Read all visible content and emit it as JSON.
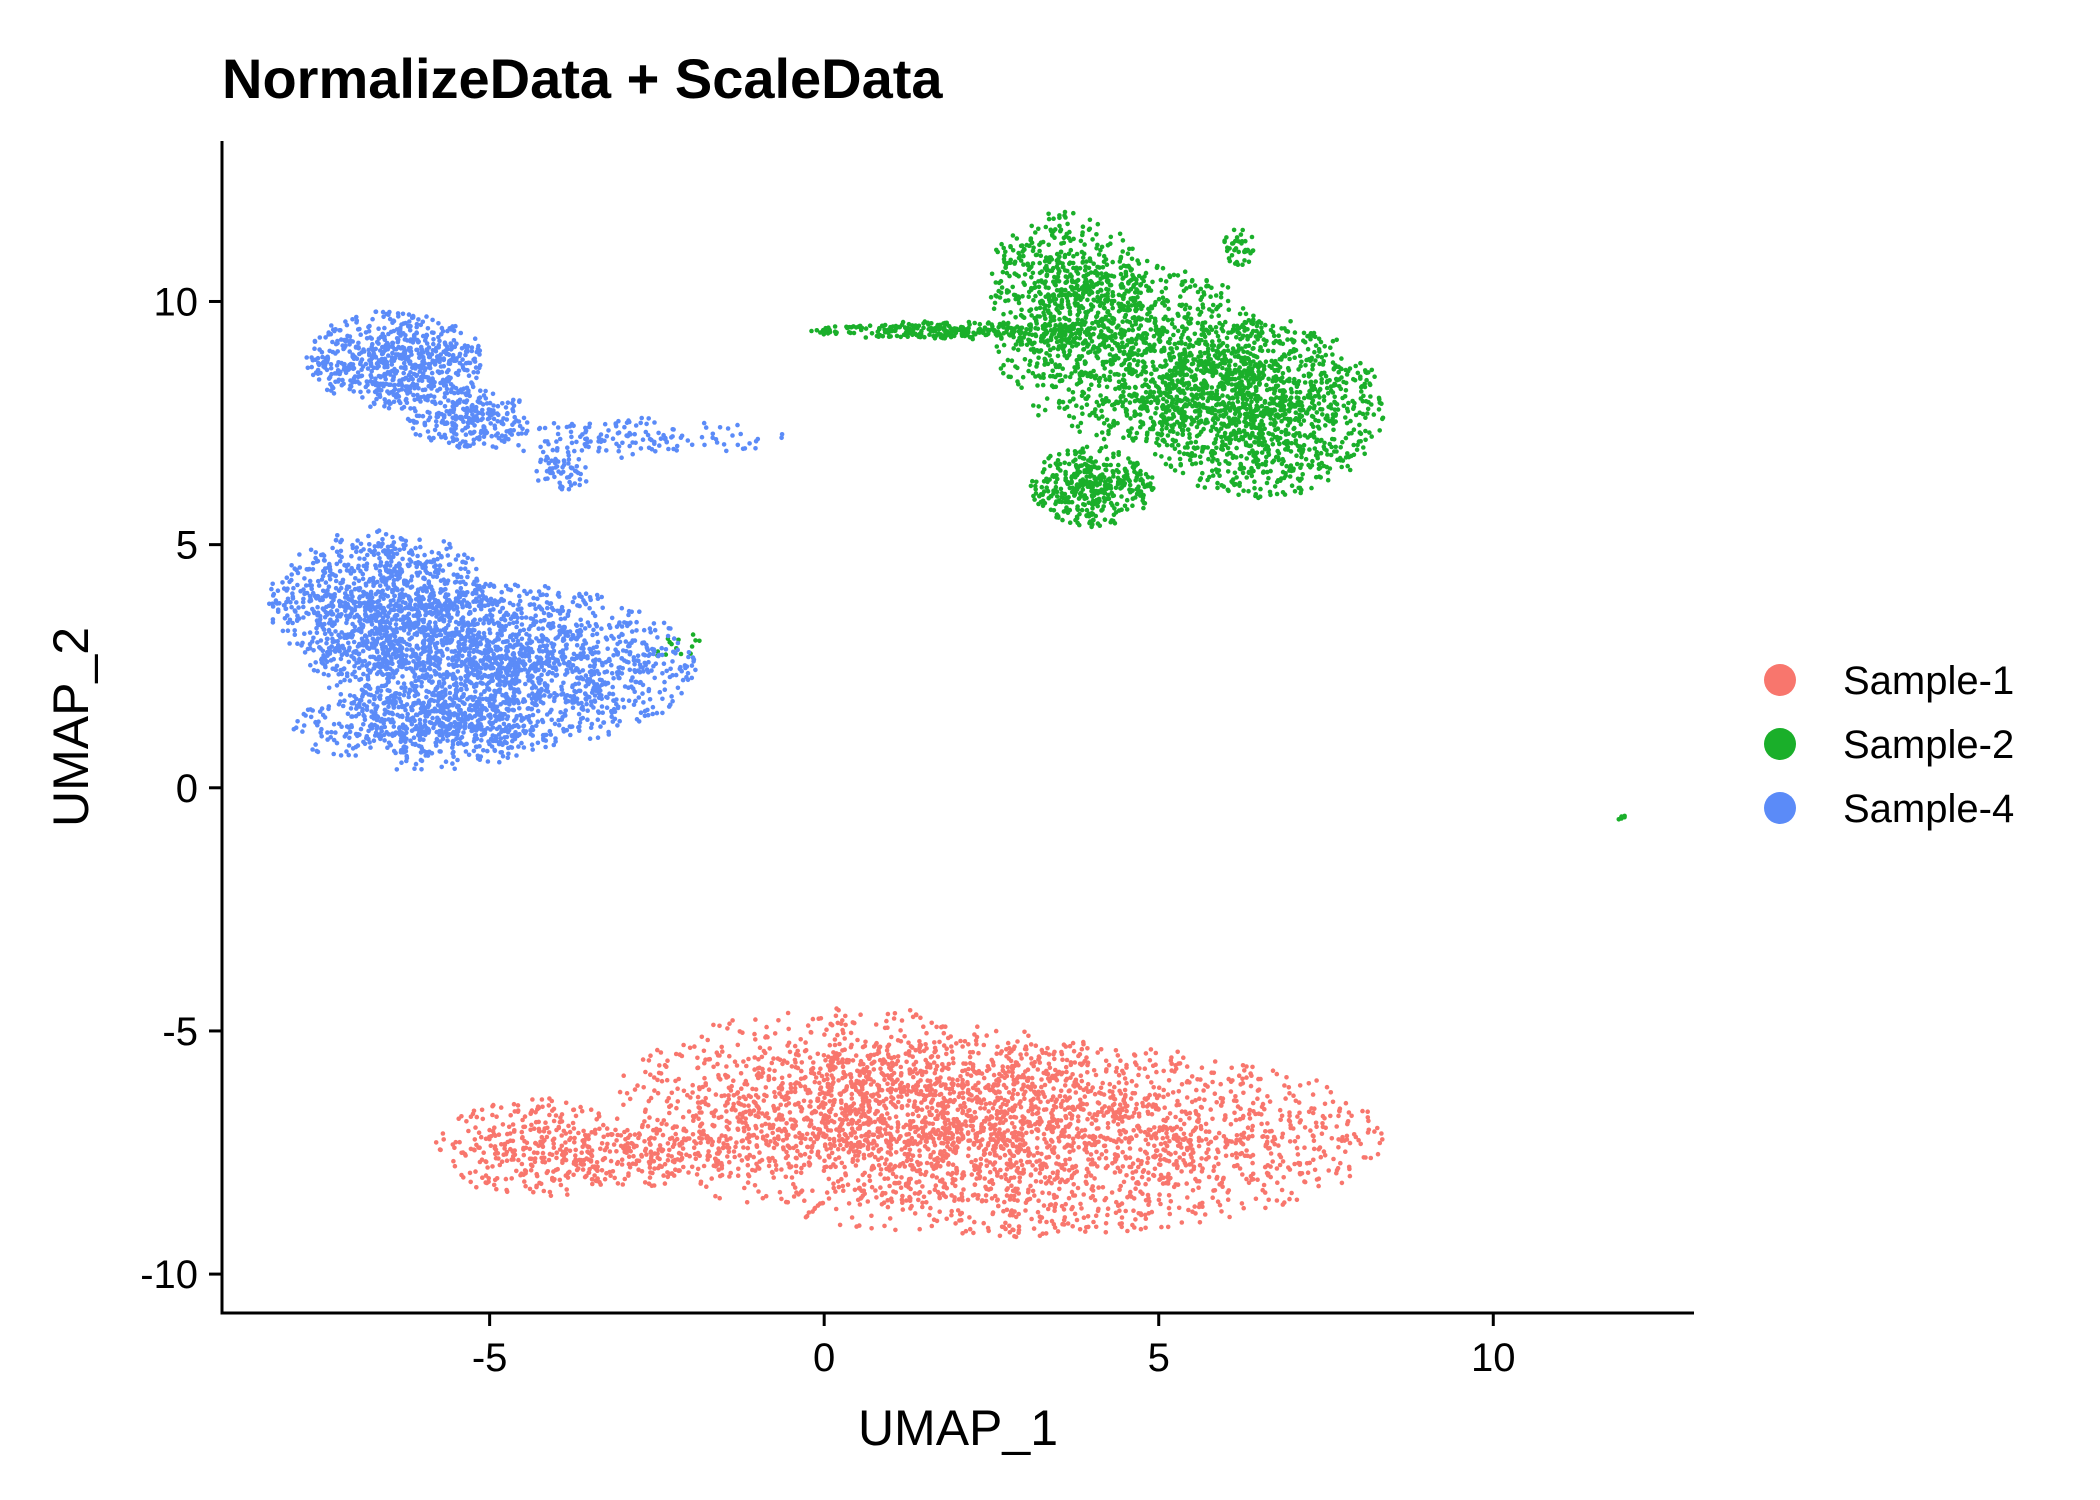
{
  "chart_data": {
    "type": "scatter",
    "title": "NormalizeData + ScaleData",
    "xlabel": "UMAP_1",
    "ylabel": "UMAP_2",
    "xlim": [
      -9,
      13
    ],
    "ylim": [
      -10.8,
      13.3
    ],
    "xticks": [
      -5,
      0,
      5,
      10
    ],
    "yticks": [
      -10,
      -5,
      0,
      5,
      10
    ],
    "xtick_labels": [
      "-5",
      "0",
      "5",
      "10"
    ],
    "ytick_labels": [
      "-10",
      "-5",
      "0",
      "5",
      "10"
    ],
    "grid": false,
    "legend_position": "right",
    "series": [
      {
        "name": "Sample-1",
        "color": "#F8766D",
        "clusters": [
          {
            "cx": 2.8,
            "cy": -7.2,
            "sx": 3.3,
            "sy": 1.2,
            "n": 2600
          },
          {
            "cx": 0.5,
            "cy": -6.2,
            "sx": 2.1,
            "sy": 1.0,
            "n": 900
          },
          {
            "cx": -4.3,
            "cy": -7.4,
            "sx": 0.9,
            "sy": 0.6,
            "n": 350
          },
          {
            "cx": -2.6,
            "cy": -7.6,
            "sx": 0.8,
            "sy": 0.35,
            "n": 160
          }
        ]
      },
      {
        "name": "Sample-2",
        "color": "#1AAF2A",
        "clusters": [
          {
            "cx": 6.5,
            "cy": 7.8,
            "sx": 1.1,
            "sy": 1.1,
            "n": 1400
          },
          {
            "cx": 4.6,
            "cy": 9.0,
            "sx": 1.2,
            "sy": 1.1,
            "n": 1100
          },
          {
            "cx": 3.6,
            "cy": 10.4,
            "sx": 0.7,
            "sy": 0.9,
            "n": 500
          },
          {
            "cx": 4.0,
            "cy": 6.2,
            "sx": 0.55,
            "sy": 0.5,
            "n": 420
          },
          {
            "cx": 1.8,
            "cy": 9.4,
            "sx": 1.2,
            "sy": 0.12,
            "n": 260
          },
          {
            "cx": 6.2,
            "cy": 11.1,
            "sx": 0.15,
            "sy": 0.25,
            "n": 40
          },
          {
            "cx": -2.2,
            "cy": 2.9,
            "sx": 0.3,
            "sy": 0.2,
            "n": 14
          },
          {
            "cx": 11.9,
            "cy": -0.6,
            "sx": 0.05,
            "sy": 0.05,
            "n": 6
          }
        ]
      },
      {
        "name": "Sample-4",
        "color": "#5B8BF8",
        "clusters": [
          {
            "cx": -4.8,
            "cy": 2.5,
            "sx": 1.7,
            "sy": 1.0,
            "n": 1900
          },
          {
            "cx": -6.6,
            "cy": 3.8,
            "sx": 1.0,
            "sy": 0.9,
            "n": 1100
          },
          {
            "cx": -6.0,
            "cy": 1.2,
            "sx": 1.2,
            "sy": 0.5,
            "n": 500
          },
          {
            "cx": -6.4,
            "cy": 8.8,
            "sx": 0.8,
            "sy": 0.6,
            "n": 700
          },
          {
            "cx": -5.3,
            "cy": 7.6,
            "sx": 0.55,
            "sy": 0.4,
            "n": 260
          },
          {
            "cx": -2.8,
            "cy": 7.2,
            "sx": 1.3,
            "sy": 0.25,
            "n": 150
          },
          {
            "cx": -3.9,
            "cy": 6.5,
            "sx": 0.25,
            "sy": 0.25,
            "n": 60
          }
        ]
      }
    ]
  }
}
